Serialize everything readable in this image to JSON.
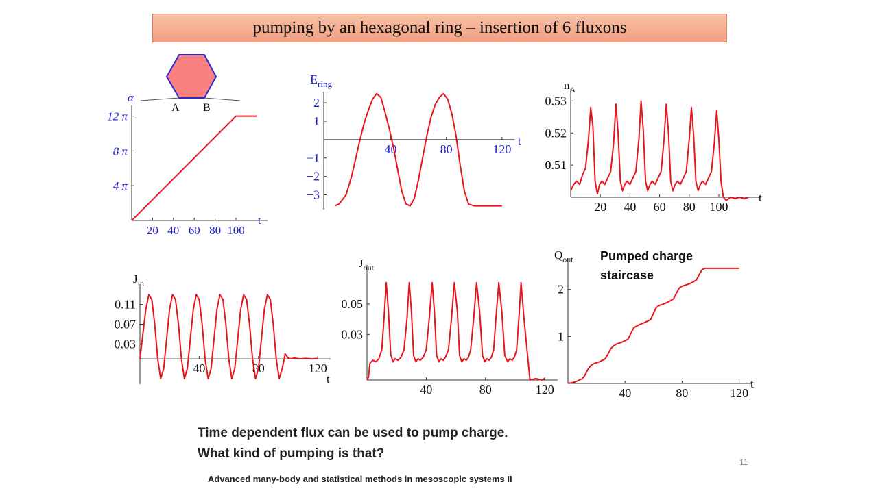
{
  "slide": {
    "title": "pumping by an hexagonal ring – insertion of 6 fluxons",
    "question_line1": "Time dependent flux can be used to pump charge.",
    "question_line2": "What kind of pumping is that?",
    "footer": "Advanced many-body and statistical methods in mesoscopic systems II",
    "page_number": "11",
    "callout_line1": "Pumped charge",
    "callout_line2": "staircase",
    "hexagon_labels": [
      "A",
      "B"
    ],
    "colors": {
      "curve": "#e8141c",
      "hexagon_fill": "#f88080",
      "hexagon_stroke": "#2a2ad0",
      "axis_label_blue": "#2222cc"
    }
  },
  "chart_data": [
    {
      "id": "alpha",
      "type": "line",
      "ylabel": "α",
      "xlabel": "t",
      "xticks": [
        "20",
        "40",
        "60",
        "80",
        "100"
      ],
      "yticks": [
        "4 π",
        "8 π",
        "12 π"
      ],
      "xlim": [
        0,
        125
      ],
      "ylim": [
        0,
        12.6
      ],
      "series": [
        {
          "x": [
            0,
            100,
            120
          ],
          "y": [
            0,
            12,
            12
          ]
        }
      ]
    },
    {
      "id": "e_ring",
      "type": "line",
      "ylabel": "E",
      "ylabel_sub": "ring",
      "xlabel": "t",
      "xticks": [
        "40",
        "80",
        "120"
      ],
      "yticks": [
        "2",
        "1",
        "−1",
        "−2",
        "−3"
      ],
      "xlim": [
        -8,
        125
      ],
      "ylim": [
        -3.8,
        2.6
      ],
      "series": [
        {
          "x": [
            0,
            3,
            8,
            12,
            15,
            18,
            21,
            24,
            27,
            30,
            33,
            36,
            39,
            42,
            45,
            48,
            51,
            54,
            57,
            60,
            63,
            66,
            69,
            72,
            75,
            78,
            81,
            84,
            87,
            90,
            93,
            96,
            100,
            110,
            120
          ],
          "y": [
            -3.6,
            -3.5,
            -3.0,
            -2.0,
            -1.0,
            0.0,
            0.9,
            1.6,
            2.2,
            2.5,
            2.3,
            1.5,
            0.6,
            -0.4,
            -1.6,
            -2.8,
            -3.5,
            -3.6,
            -3.2,
            -2.2,
            -1.0,
            0.2,
            1.2,
            1.9,
            2.3,
            2.5,
            2.2,
            1.4,
            0.2,
            -1.4,
            -2.8,
            -3.5,
            -3.6,
            -3.6,
            -3.6
          ]
        }
      ]
    },
    {
      "id": "n_a",
      "type": "line",
      "ylabel": "n",
      "ylabel_sub": "A",
      "xlabel": "t",
      "xticks": [
        "20",
        "40",
        "60",
        "80",
        "100"
      ],
      "yticks": [
        "0.51",
        "0.52",
        "0.53"
      ],
      "xlim": [
        0,
        125
      ],
      "ylim": [
        0.5,
        0.532
      ],
      "series": [
        {
          "x": [
            0,
            2,
            4,
            6,
            8,
            10,
            12,
            13.5,
            15,
            16.5,
            18,
            19.5,
            21,
            23,
            25,
            27,
            29,
            30.5,
            32,
            33.5,
            35,
            36.5,
            38,
            40,
            42,
            44,
            46,
            47.5,
            49,
            50.5,
            52,
            53.5,
            55,
            57,
            59,
            61,
            63,
            64.5,
            66,
            67.5,
            69,
            70.5,
            72,
            74,
            76,
            78,
            80,
            81.5,
            83,
            84.5,
            86,
            87.5,
            89,
            91,
            93,
            95,
            97,
            98.5,
            100,
            101.5,
            103,
            105,
            108,
            111,
            114,
            117,
            120
          ],
          "y": [
            0.502,
            0.504,
            0.505,
            0.504,
            0.507,
            0.509,
            0.518,
            0.528,
            0.522,
            0.505,
            0.501,
            0.504,
            0.505,
            0.504,
            0.506,
            0.508,
            0.517,
            0.529,
            0.52,
            0.505,
            0.502,
            0.504,
            0.505,
            0.504,
            0.506,
            0.508,
            0.518,
            0.53,
            0.521,
            0.505,
            0.502,
            0.504,
            0.505,
            0.504,
            0.506,
            0.508,
            0.518,
            0.529,
            0.52,
            0.505,
            0.502,
            0.504,
            0.505,
            0.504,
            0.506,
            0.508,
            0.518,
            0.528,
            0.519,
            0.505,
            0.502,
            0.504,
            0.505,
            0.504,
            0.506,
            0.508,
            0.517,
            0.527,
            0.518,
            0.505,
            0.5,
            0.499,
            0.5,
            0.4995,
            0.5,
            0.4995,
            0.5
          ]
        }
      ]
    },
    {
      "id": "j_in",
      "type": "line",
      "ylabel": "J",
      "ylabel_sub": "in",
      "xlabel": "t",
      "xticks": [
        "40",
        "80",
        "120"
      ],
      "yticks": [
        "0.03",
        "0.07",
        "0.11"
      ],
      "xlim": [
        0,
        125
      ],
      "ylim": [
        -0.04,
        0.14
      ],
      "series": [
        {
          "x": [
            0,
            2,
            4,
            6,
            8,
            10,
            12,
            14,
            16,
            18,
            20,
            22,
            24,
            26,
            28,
            30,
            32,
            34,
            36,
            38,
            40,
            42,
            44,
            46,
            48,
            50,
            52,
            54,
            56,
            58,
            60,
            62,
            64,
            66,
            68,
            70,
            72,
            74,
            76,
            78,
            80,
            82,
            84,
            86,
            88,
            90,
            92,
            94,
            96,
            98,
            100,
            102,
            104,
            108,
            112,
            116,
            120
          ],
          "y": [
            0.0,
            0.05,
            0.1,
            0.13,
            0.12,
            0.07,
            0.0,
            -0.04,
            -0.02,
            0.04,
            0.1,
            0.13,
            0.12,
            0.07,
            0.0,
            -0.04,
            -0.02,
            0.04,
            0.1,
            0.13,
            0.12,
            0.07,
            0.0,
            -0.04,
            -0.02,
            0.04,
            0.1,
            0.13,
            0.12,
            0.07,
            0.0,
            -0.04,
            -0.02,
            0.04,
            0.1,
            0.13,
            0.12,
            0.07,
            0.0,
            -0.04,
            -0.02,
            0.04,
            0.1,
            0.13,
            0.12,
            0.07,
            0.0,
            -0.04,
            -0.02,
            0.01,
            0.002,
            0.0,
            0.002,
            0.0,
            0.001,
            0.0,
            0.001
          ]
        }
      ]
    },
    {
      "id": "j_out",
      "type": "line",
      "ylabel": "J",
      "ylabel_sub": "out",
      "xlabel": "t",
      "xticks": [
        "40",
        "80",
        "120"
      ],
      "yticks": [
        "0.03",
        "0.05"
      ],
      "xlim": [
        0,
        125
      ],
      "ylim": [
        0,
        0.072
      ],
      "series": [
        {
          "x": [
            0,
            1,
            2,
            4,
            6,
            8,
            10,
            11.5,
            13,
            14.5,
            16,
            17.5,
            19,
            21,
            23,
            25,
            27,
            28.5,
            30,
            31.5,
            33,
            34.5,
            36,
            38,
            40,
            42,
            44,
            45.5,
            47,
            48.5,
            50,
            51.5,
            53,
            55,
            57,
            59,
            61,
            62.5,
            64,
            65.5,
            67,
            68.5,
            70,
            72,
            74,
            76,
            78,
            79.5,
            81,
            82.5,
            84,
            85.5,
            87,
            89,
            91,
            93,
            95,
            96.5,
            98,
            99.5,
            101,
            102.5,
            104,
            106,
            110,
            114,
            118,
            120
          ],
          "y": [
            0.0,
            0.002,
            0.011,
            0.013,
            0.012,
            0.014,
            0.02,
            0.04,
            0.064,
            0.045,
            0.017,
            0.012,
            0.014,
            0.013,
            0.015,
            0.02,
            0.04,
            0.064,
            0.045,
            0.016,
            0.012,
            0.014,
            0.013,
            0.015,
            0.02,
            0.04,
            0.064,
            0.045,
            0.016,
            0.012,
            0.014,
            0.013,
            0.015,
            0.02,
            0.04,
            0.064,
            0.045,
            0.016,
            0.012,
            0.014,
            0.013,
            0.015,
            0.02,
            0.04,
            0.064,
            0.045,
            0.016,
            0.012,
            0.014,
            0.013,
            0.015,
            0.02,
            0.04,
            0.064,
            0.045,
            0.016,
            0.012,
            0.014,
            0.013,
            0.015,
            0.02,
            0.04,
            0.064,
            0.04,
            0.0,
            0.001,
            0.0,
            0.001
          ]
        }
      ]
    },
    {
      "id": "q_out",
      "type": "line",
      "ylabel": "Q",
      "ylabel_sub": "out",
      "xlabel": "t",
      "xticks": [
        "40",
        "80",
        "120"
      ],
      "yticks": [
        "1",
        "2"
      ],
      "xlim": [
        0,
        125
      ],
      "ylim": [
        0,
        2.55
      ],
      "series": [
        {
          "x": [
            0,
            5,
            10,
            12,
            14,
            16,
            18,
            22,
            26,
            28,
            30,
            32,
            34,
            38,
            42,
            44,
            46,
            48,
            50,
            54,
            58,
            60,
            62,
            64,
            66,
            70,
            74,
            76,
            78,
            80,
            82,
            86,
            90,
            92,
            94,
            96,
            98,
            100,
            110,
            120
          ],
          "y": [
            0.0,
            0.03,
            0.1,
            0.18,
            0.3,
            0.38,
            0.42,
            0.46,
            0.52,
            0.62,
            0.74,
            0.8,
            0.84,
            0.88,
            0.94,
            1.06,
            1.18,
            1.22,
            1.25,
            1.3,
            1.36,
            1.5,
            1.62,
            1.66,
            1.68,
            1.73,
            1.8,
            1.92,
            2.03,
            2.07,
            2.09,
            2.13,
            2.2,
            2.32,
            2.42,
            2.45,
            2.45,
            2.45,
            2.45,
            2.45
          ]
        }
      ]
    }
  ]
}
